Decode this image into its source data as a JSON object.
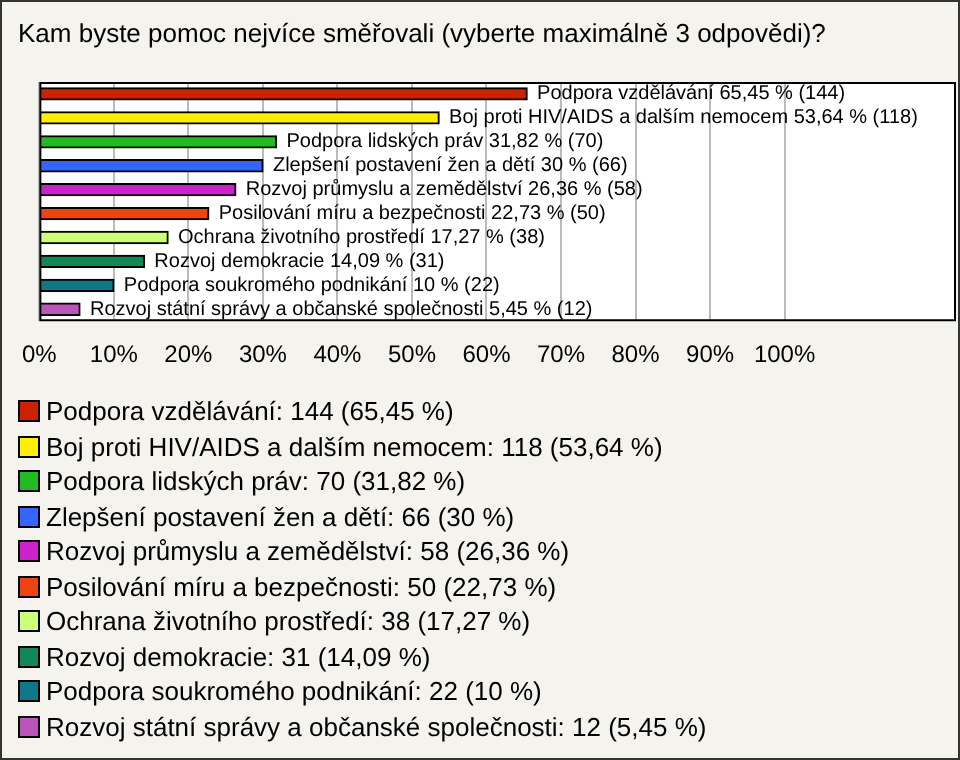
{
  "chart_data": {
    "type": "bar",
    "orientation": "horizontal",
    "title": "Kam byste pomoc nejvíce směřovali (vyberte maximálně 3 odpovědi)?",
    "categories": [
      "Podpora vzdělávání",
      "Boj proti HIV/AIDS a dalším nemocem",
      "Podpora lidských práv",
      "Zlepšení postavení žen a dětí",
      "Rozvoj průmyslu a zemědělství",
      "Posilování míru a bezpečnosti",
      "Ochrana životního prostředí",
      "Rozvoj demokracie",
      "Podpora soukromého podnikání",
      "Rozvoj státní správy a občanské společnosti"
    ],
    "values": [
      65.45,
      53.64,
      31.82,
      30,
      26.36,
      22.73,
      17.27,
      14.09,
      10,
      5.45
    ],
    "colors": [
      "#cc2200",
      "#ffee00",
      "#22bb22",
      "#3366ff",
      "#cc22cc",
      "#ee4411",
      "#ccff77",
      "#118855",
      "#117788",
      "#bb55bb"
    ],
    "value_labels": [
      "65,45 % (144)",
      "53,64 % (118)",
      "31,82 % (70)",
      "30 % (66)",
      "26,36 % (58)",
      "22,73 % (50)",
      "17,27 % (38)",
      "14,09 % (31)",
      "10 % (22)",
      "5,45 % (12)"
    ],
    "xlim": [
      0,
      123
    ],
    "xticks": [
      {
        "value": 0,
        "label": "0%"
      },
      {
        "value": 10,
        "label": "10%"
      },
      {
        "value": 20,
        "label": "20%"
      },
      {
        "value": 30,
        "label": "30%"
      },
      {
        "value": 40,
        "label": "40%"
      },
      {
        "value": 50,
        "label": "50%"
      },
      {
        "value": 60,
        "label": "60%"
      },
      {
        "value": 70,
        "label": "70%"
      },
      {
        "value": 80,
        "label": "80%"
      },
      {
        "value": 90,
        "label": "90%"
      },
      {
        "value": 100,
        "label": "100%"
      }
    ],
    "grid": "x",
    "annotations": [
      "Podpora vzdělávání: 144 (65,45 %)",
      "Boj proti HIV/AIDS a dalším nemocem: 118 (53,64 %)",
      "Podpora lidských práv: 70 (31,82 %)",
      "Zlepšení postavení žen a dětí: 66 (30 %)",
      "Rozvoj průmyslu a zemědělství: 58 (26,36 %)",
      "Posilování míru a bezpečnosti: 50 (22,73 %)",
      "Ochrana životního prostředí: 38 (17,27 %)",
      "Rozvoj demokracie: 31 (14,09 %)",
      "Podpora soukromého podnikání: 22 (10 %)",
      "Rozvoj státní správy a občanské společnosti: 12 (5,45 %)"
    ]
  }
}
